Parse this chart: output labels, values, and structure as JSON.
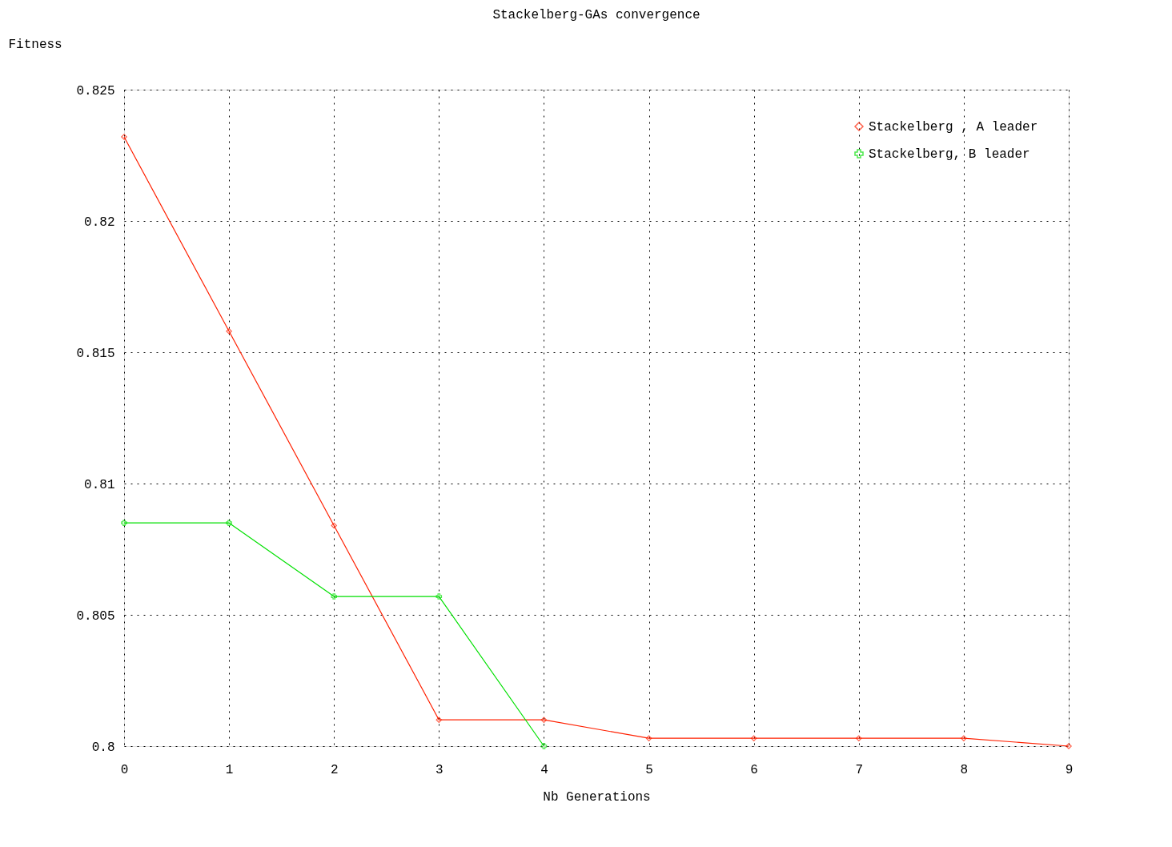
{
  "chart_data": {
    "type": "line",
    "title": "Stackelberg-GAs convergence",
    "xlabel": "Nb Generations",
    "ylabel": "Fitness",
    "x": [
      0,
      1,
      2,
      3,
      4,
      5,
      6,
      7,
      8,
      9
    ],
    "series": [
      {
        "name": "Stackelberg , A leader",
        "color": "#ff2000",
        "marker": "diamond",
        "values": [
          0.8232,
          0.8158,
          0.8084,
          0.801,
          0.801,
          0.8003,
          0.8003,
          0.8003,
          0.8003,
          0.8
        ]
      },
      {
        "name": "Stackelberg, B leader",
        "color": "#00e000",
        "marker": "cross",
        "x": [
          0,
          1,
          2,
          3,
          4
        ],
        "values": [
          0.8085,
          0.8085,
          0.8057,
          0.8057,
          0.8
        ]
      }
    ],
    "xlim": [
      0,
      9
    ],
    "xticks": [
      0,
      1,
      2,
      3,
      4,
      5,
      6,
      7,
      8,
      9
    ],
    "ylim": [
      0.8,
      0.825
    ],
    "yticks": [
      0.8,
      0.805,
      0.81,
      0.815,
      0.82,
      0.825
    ],
    "grid": true,
    "legend": "top right",
    "line_style": "solid"
  }
}
